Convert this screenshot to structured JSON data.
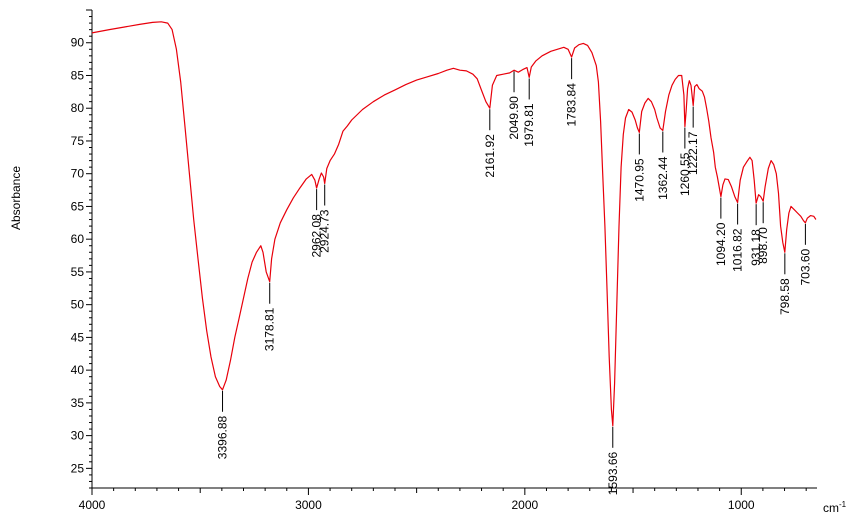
{
  "chart_data": {
    "type": "line",
    "title": "",
    "xlabel": "cm",
    "xlabel_superscript": "-1",
    "ylabel": "Absorbance",
    "xlim": [
      4000,
      650
    ],
    "ylim": [
      22,
      95
    ],
    "x_reversed": true,
    "grid": false,
    "legend": "none",
    "x_ticks": [
      {
        "value": 4000,
        "label": "4000"
      },
      {
        "value": 3000,
        "label": "3000"
      },
      {
        "value": 2000,
        "label": "2000"
      },
      {
        "value": 1000,
        "label": "1000"
      }
    ],
    "y_ticks": [
      {
        "value": 25,
        "label": "25"
      },
      {
        "value": 30,
        "label": "30"
      },
      {
        "value": 35,
        "label": "35"
      },
      {
        "value": 40,
        "label": "40"
      },
      {
        "value": 45,
        "label": "45"
      },
      {
        "value": 50,
        "label": "50"
      },
      {
        "value": 55,
        "label": "55"
      },
      {
        "value": 60,
        "label": "60"
      },
      {
        "value": 65,
        "label": "65"
      },
      {
        "value": 70,
        "label": "70"
      },
      {
        "value": 75,
        "label": "75"
      },
      {
        "value": 80,
        "label": "80"
      },
      {
        "value": 85,
        "label": "85"
      },
      {
        "value": 90,
        "label": "90"
      }
    ],
    "series": [
      {
        "color": "#e8000b",
        "points": [
          [
            4000,
            91.5
          ],
          [
            3920,
            92.0
          ],
          [
            3850,
            92.4
          ],
          [
            3780,
            92.8
          ],
          [
            3720,
            93.1
          ],
          [
            3680,
            93.2
          ],
          [
            3650,
            93.0
          ],
          [
            3630,
            92.0
          ],
          [
            3610,
            89.0
          ],
          [
            3590,
            84.0
          ],
          [
            3570,
            77.0
          ],
          [
            3550,
            70.0
          ],
          [
            3530,
            63.0
          ],
          [
            3510,
            57.0
          ],
          [
            3490,
            51.0
          ],
          [
            3470,
            46.0
          ],
          [
            3450,
            42.0
          ],
          [
            3430,
            39.0
          ],
          [
            3410,
            37.5
          ],
          [
            3396.88,
            37.0
          ],
          [
            3380,
            38.5
          ],
          [
            3360,
            41.5
          ],
          [
            3340,
            45.0
          ],
          [
            3320,
            48.0
          ],
          [
            3300,
            51.0
          ],
          [
            3280,
            54.0
          ],
          [
            3260,
            56.5
          ],
          [
            3240,
            58.0
          ],
          [
            3220,
            59.0
          ],
          [
            3210,
            58.0
          ],
          [
            3195,
            55.0
          ],
          [
            3178.81,
            53.5
          ],
          [
            3170,
            57.0
          ],
          [
            3155,
            60.0
          ],
          [
            3130,
            62.5
          ],
          [
            3100,
            64.5
          ],
          [
            3070,
            66.3
          ],
          [
            3040,
            67.8
          ],
          [
            3010,
            69.2
          ],
          [
            2985,
            69.9
          ],
          [
            2970,
            69.0
          ],
          [
            2962.08,
            67.8
          ],
          [
            2950,
            69.2
          ],
          [
            2940,
            70.1
          ],
          [
            2930,
            69.5
          ],
          [
            2924.73,
            68.5
          ],
          [
            2915,
            70.8
          ],
          [
            2900,
            72.0
          ],
          [
            2880,
            73.0
          ],
          [
            2860,
            74.5
          ],
          [
            2840,
            76.5
          ],
          [
            2820,
            77.3
          ],
          [
            2800,
            78.2
          ],
          [
            2750,
            79.8
          ],
          [
            2700,
            81.0
          ],
          [
            2650,
            82.0
          ],
          [
            2600,
            82.8
          ],
          [
            2550,
            83.6
          ],
          [
            2500,
            84.3
          ],
          [
            2450,
            84.8
          ],
          [
            2400,
            85.3
          ],
          [
            2360,
            85.8
          ],
          [
            2330,
            86.1
          ],
          [
            2300,
            85.8
          ],
          [
            2270,
            85.7
          ],
          [
            2240,
            85.2
          ],
          [
            2220,
            84.5
          ],
          [
            2200,
            82.7
          ],
          [
            2180,
            81.0
          ],
          [
            2161.92,
            80.0
          ],
          [
            2150,
            83.5
          ],
          [
            2130,
            85.0
          ],
          [
            2100,
            85.2
          ],
          [
            2070,
            85.4
          ],
          [
            2049.9,
            85.8
          ],
          [
            2030,
            85.5
          ],
          [
            2010,
            85.9
          ],
          [
            1990,
            86.2
          ],
          [
            1979.81,
            84.7
          ],
          [
            1970,
            86.3
          ],
          [
            1950,
            87.2
          ],
          [
            1920,
            88.0
          ],
          [
            1880,
            88.7
          ],
          [
            1850,
            89.0
          ],
          [
            1820,
            89.3
          ],
          [
            1800,
            89.0
          ],
          [
            1783.84,
            87.8
          ],
          [
            1770,
            89.2
          ],
          [
            1750,
            89.7
          ],
          [
            1730,
            89.9
          ],
          [
            1710,
            89.6
          ],
          [
            1690,
            88.5
          ],
          [
            1670,
            86.5
          ],
          [
            1660,
            84.0
          ],
          [
            1650,
            78.0
          ],
          [
            1640,
            70.0
          ],
          [
            1630,
            62.0
          ],
          [
            1620,
            52.0
          ],
          [
            1610,
            42.0
          ],
          [
            1600,
            34.0
          ],
          [
            1593.66,
            31.5
          ],
          [
            1585,
            38.0
          ],
          [
            1575,
            50.0
          ],
          [
            1565,
            62.0
          ],
          [
            1555,
            71.0
          ],
          [
            1545,
            76.0
          ],
          [
            1535,
            78.5
          ],
          [
            1520,
            79.8
          ],
          [
            1505,
            79.4
          ],
          [
            1490,
            78.2
          ],
          [
            1480,
            77.0
          ],
          [
            1470.95,
            76.3
          ],
          [
            1460,
            79.5
          ],
          [
            1445,
            80.8
          ],
          [
            1430,
            81.5
          ],
          [
            1415,
            81.0
          ],
          [
            1400,
            79.8
          ],
          [
            1390,
            78.5
          ],
          [
            1375,
            77.0
          ],
          [
            1362.44,
            76.6
          ],
          [
            1350,
            79.5
          ],
          [
            1335,
            82.0
          ],
          [
            1320,
            83.5
          ],
          [
            1305,
            84.4
          ],
          [
            1290,
            85.0
          ],
          [
            1275,
            85.0
          ],
          [
            1265,
            82.0
          ],
          [
            1260.55,
            77.2
          ],
          [
            1255,
            79.5
          ],
          [
            1248,
            83.0
          ],
          [
            1240,
            84.2
          ],
          [
            1232,
            83.5
          ],
          [
            1222.17,
            80.4
          ],
          [
            1215,
            83.3
          ],
          [
            1205,
            83.6
          ],
          [
            1195,
            83.0
          ],
          [
            1180,
            82.6
          ],
          [
            1170,
            81.7
          ],
          [
            1160,
            80.0
          ],
          [
            1150,
            78.0
          ],
          [
            1140,
            75.5
          ],
          [
            1128,
            73.3
          ],
          [
            1120,
            71.0
          ],
          [
            1110,
            69.5
          ],
          [
            1094.2,
            66.5
          ],
          [
            1085,
            68.3
          ],
          [
            1075,
            69.2
          ],
          [
            1060,
            69.1
          ],
          [
            1045,
            68.0
          ],
          [
            1030,
            66.5
          ],
          [
            1016.82,
            65.6
          ],
          [
            1005,
            69.0
          ],
          [
            990,
            71.0
          ],
          [
            975,
            71.8
          ],
          [
            960,
            72.5
          ],
          [
            950,
            72.0
          ],
          [
            940,
            69.0
          ],
          [
            931.18,
            65.5
          ],
          [
            920,
            66.8
          ],
          [
            910,
            66.5
          ],
          [
            898.7,
            65.8
          ],
          [
            890,
            68.0
          ],
          [
            875,
            70.8
          ],
          [
            862,
            72.0
          ],
          [
            850,
            71.4
          ],
          [
            838,
            70.0
          ],
          [
            828,
            67.0
          ],
          [
            818,
            62.0
          ],
          [
            808,
            59.5
          ],
          [
            798.58,
            58.0
          ],
          [
            790,
            61.5
          ],
          [
            780,
            64.0
          ],
          [
            770,
            65.0
          ],
          [
            755,
            64.5
          ],
          [
            740,
            64.0
          ],
          [
            725,
            63.5
          ],
          [
            712,
            62.8
          ],
          [
            703.6,
            62.5
          ],
          [
            695,
            63.2
          ],
          [
            680,
            63.6
          ],
          [
            665,
            63.5
          ],
          [
            655,
            63.0
          ]
        ]
      }
    ],
    "annotations": [
      {
        "x": 3396.88,
        "y": 37.0,
        "label": "3396.88"
      },
      {
        "x": 3178.81,
        "y": 53.5,
        "label": "3178.81"
      },
      {
        "x": 2962.08,
        "y": 67.8,
        "label": "2962.08"
      },
      {
        "x": 2924.73,
        "y": 68.5,
        "label": "2924.73"
      },
      {
        "x": 2161.92,
        "y": 80.0,
        "label": "2161.92"
      },
      {
        "x": 2049.9,
        "y": 85.8,
        "label": "2049.90"
      },
      {
        "x": 1979.81,
        "y": 84.7,
        "label": "1979.81"
      },
      {
        "x": 1783.84,
        "y": 87.8,
        "label": "1783.84"
      },
      {
        "x": 1593.66,
        "y": 31.5,
        "label": "1593.66"
      },
      {
        "x": 1470.95,
        "y": 76.3,
        "label": "1470.95"
      },
      {
        "x": 1362.44,
        "y": 76.6,
        "label": "1362.44"
      },
      {
        "x": 1260.55,
        "y": 77.2,
        "label": "1260.55"
      },
      {
        "x": 1222.17,
        "y": 80.4,
        "label": "1222.17"
      },
      {
        "x": 1094.2,
        "y": 66.5,
        "label": "1094.20"
      },
      {
        "x": 1016.82,
        "y": 65.6,
        "label": "1016.82"
      },
      {
        "x": 931.18,
        "y": 65.5,
        "label": "931.18"
      },
      {
        "x": 898.7,
        "y": 65.8,
        "label": "898.70"
      },
      {
        "x": 798.58,
        "y": 58.0,
        "label": "798.58"
      },
      {
        "x": 703.6,
        "y": 62.5,
        "label": "703.60"
      }
    ]
  }
}
